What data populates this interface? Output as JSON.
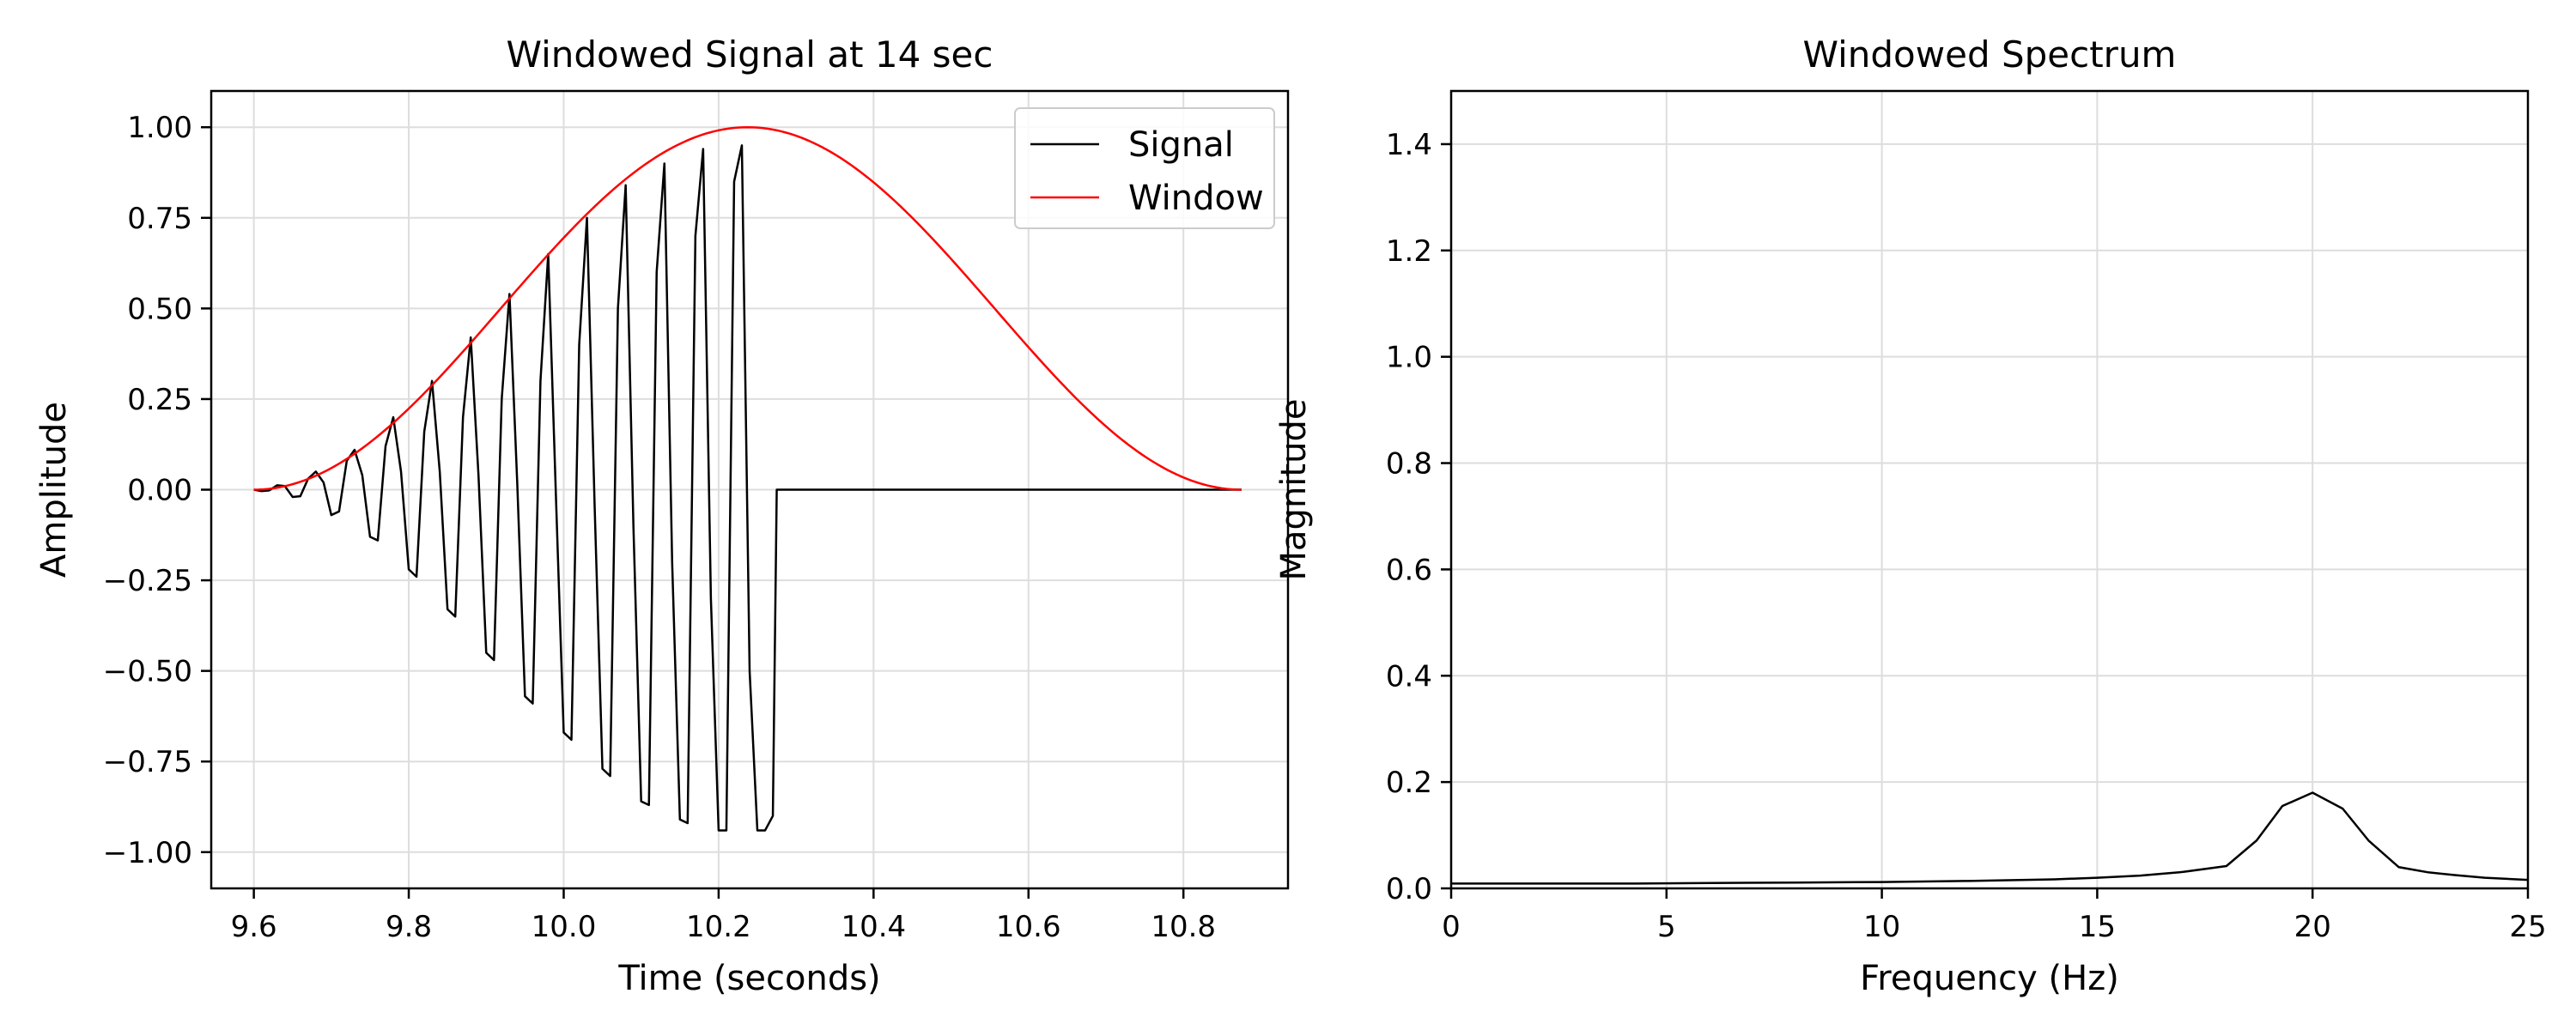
{
  "chart_data": [
    {
      "type": "line",
      "title": "Windowed Signal at 14 sec",
      "xlabel": "Time (seconds)",
      "ylabel": "Amplitude",
      "xlim": [
        9.545,
        10.935
      ],
      "ylim": [
        -1.1,
        1.1
      ],
      "xticks": [
        9.6,
        9.8,
        10.0,
        10.2,
        10.4,
        10.6,
        10.8
      ],
      "yticks": [
        -1.0,
        -0.75,
        -0.5,
        -0.25,
        0.0,
        0.25,
        0.5,
        0.75,
        1.0
      ],
      "grid": true,
      "legend_position": "top-right",
      "series": [
        {
          "name": "Signal",
          "color": "#000000",
          "x": [
            9.6,
            9.61,
            9.62,
            9.63,
            9.64,
            9.65,
            9.66,
            9.67,
            9.68,
            9.69,
            9.7,
            9.71,
            9.72,
            9.73,
            9.74,
            9.75,
            9.76,
            9.77,
            9.78,
            9.79,
            9.8,
            9.81,
            9.82,
            9.83,
            9.84,
            9.85,
            9.86,
            9.87,
            9.88,
            9.89,
            9.9,
            9.91,
            9.92,
            9.93,
            9.94,
            9.95,
            9.96,
            9.97,
            9.98,
            9.99,
            10.0,
            10.01,
            10.02,
            10.03,
            10.04,
            10.05,
            10.06,
            10.07,
            10.08,
            10.09,
            10.1,
            10.11,
            10.12,
            10.13,
            10.14,
            10.15,
            10.16,
            10.17,
            10.18,
            10.19,
            10.2,
            10.21,
            10.22,
            10.23,
            10.24,
            10.25,
            10.26,
            10.27,
            10.275,
            10.28,
            10.875
          ],
          "y": [
            0.0,
            -0.004,
            -0.002,
            0.012,
            0.01,
            -0.02,
            -0.018,
            0.03,
            0.05,
            0.02,
            -0.07,
            -0.06,
            0.08,
            0.11,
            0.04,
            -0.13,
            -0.14,
            0.12,
            0.2,
            0.05,
            -0.22,
            -0.24,
            0.16,
            0.3,
            0.05,
            -0.33,
            -0.35,
            0.2,
            0.42,
            0.04,
            -0.45,
            -0.47,
            0.25,
            0.54,
            0.02,
            -0.57,
            -0.59,
            0.3,
            0.65,
            -0.02,
            -0.67,
            -0.69,
            0.4,
            0.75,
            -0.05,
            -0.77,
            -0.79,
            0.5,
            0.84,
            -0.1,
            -0.86,
            -0.87,
            0.6,
            0.9,
            -0.2,
            -0.91,
            -0.92,
            0.7,
            0.94,
            -0.3,
            -0.94,
            -0.94,
            0.85,
            0.95,
            -0.5,
            -0.94,
            -0.94,
            -0.9,
            0.0,
            0.0,
            0.0
          ]
        },
        {
          "name": "Window",
          "color": "#ff0000",
          "function": "hann",
          "x_start": 9.6,
          "x_end": 10.875,
          "peak": 1.0
        }
      ]
    },
    {
      "type": "line",
      "title": "Windowed Spectrum",
      "xlabel": "Frequency (Hz)",
      "ylabel": "Magnitude",
      "xlim": [
        0,
        25
      ],
      "ylim": [
        0,
        1.5
      ],
      "xticks": [
        0,
        5,
        10,
        15,
        20,
        25
      ],
      "yticks": [
        0.0,
        0.2,
        0.4,
        0.6,
        0.8,
        1.0,
        1.2,
        1.4
      ],
      "grid": true,
      "series": [
        {
          "color": "#000000",
          "x": [
            0,
            2,
            4,
            6,
            8,
            10,
            12,
            14,
            15,
            16,
            17,
            18,
            18.7,
            19.3,
            20,
            20.7,
            21.3,
            22,
            22.7,
            23.3,
            24,
            25
          ],
          "y": [
            0.009,
            0.009,
            0.009,
            0.01,
            0.011,
            0.012,
            0.014,
            0.017,
            0.02,
            0.024,
            0.031,
            0.042,
            0.09,
            0.155,
            0.18,
            0.15,
            0.09,
            0.04,
            0.03,
            0.025,
            0.02,
            0.016
          ]
        }
      ]
    }
  ]
}
